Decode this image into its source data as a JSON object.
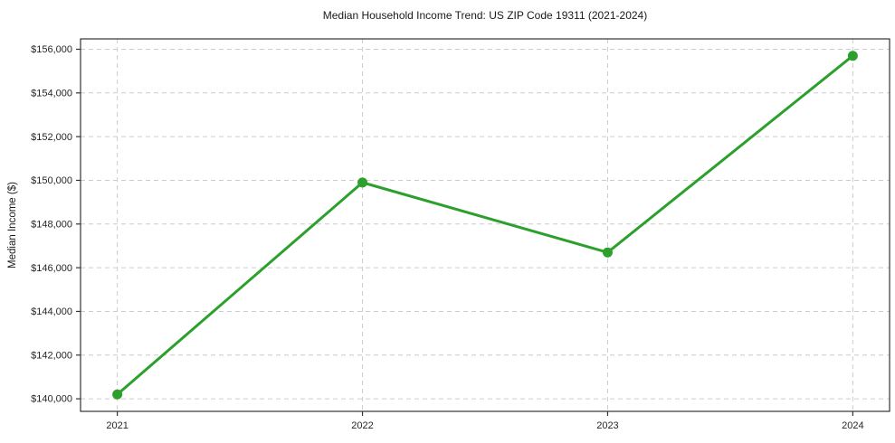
{
  "chart": {
    "title": "Median Household Income Trend: US ZIP Code 19311 (2021-2024)",
    "ylabel": "Median Income ($)"
  },
  "chart_data": {
    "type": "line",
    "title": "Median Household Income Trend: US ZIP Code 19311 (2021-2024)",
    "xlabel": "",
    "ylabel": "Median Income ($)",
    "categories": [
      "2021",
      "2022",
      "2023",
      "2024"
    ],
    "series": [
      {
        "name": "Median Household Income",
        "values": [
          140200,
          149900,
          146700,
          155700
        ],
        "color": "#2ca02c"
      }
    ],
    "ylim": [
      139425,
      156475
    ],
    "yticks": [
      140000,
      142000,
      144000,
      146000,
      148000,
      150000,
      152000,
      154000,
      156000
    ],
    "ytick_labels": [
      "$140,000",
      "$142,000",
      "$144,000",
      "$146,000",
      "$148,000",
      "$150,000",
      "$152,000",
      "$154,000",
      "$156,000"
    ],
    "grid": true,
    "grid_style": "dashed",
    "grid_color": "#cccccc",
    "border_color": "#333333",
    "legend_position": "none",
    "marker": "circle"
  }
}
